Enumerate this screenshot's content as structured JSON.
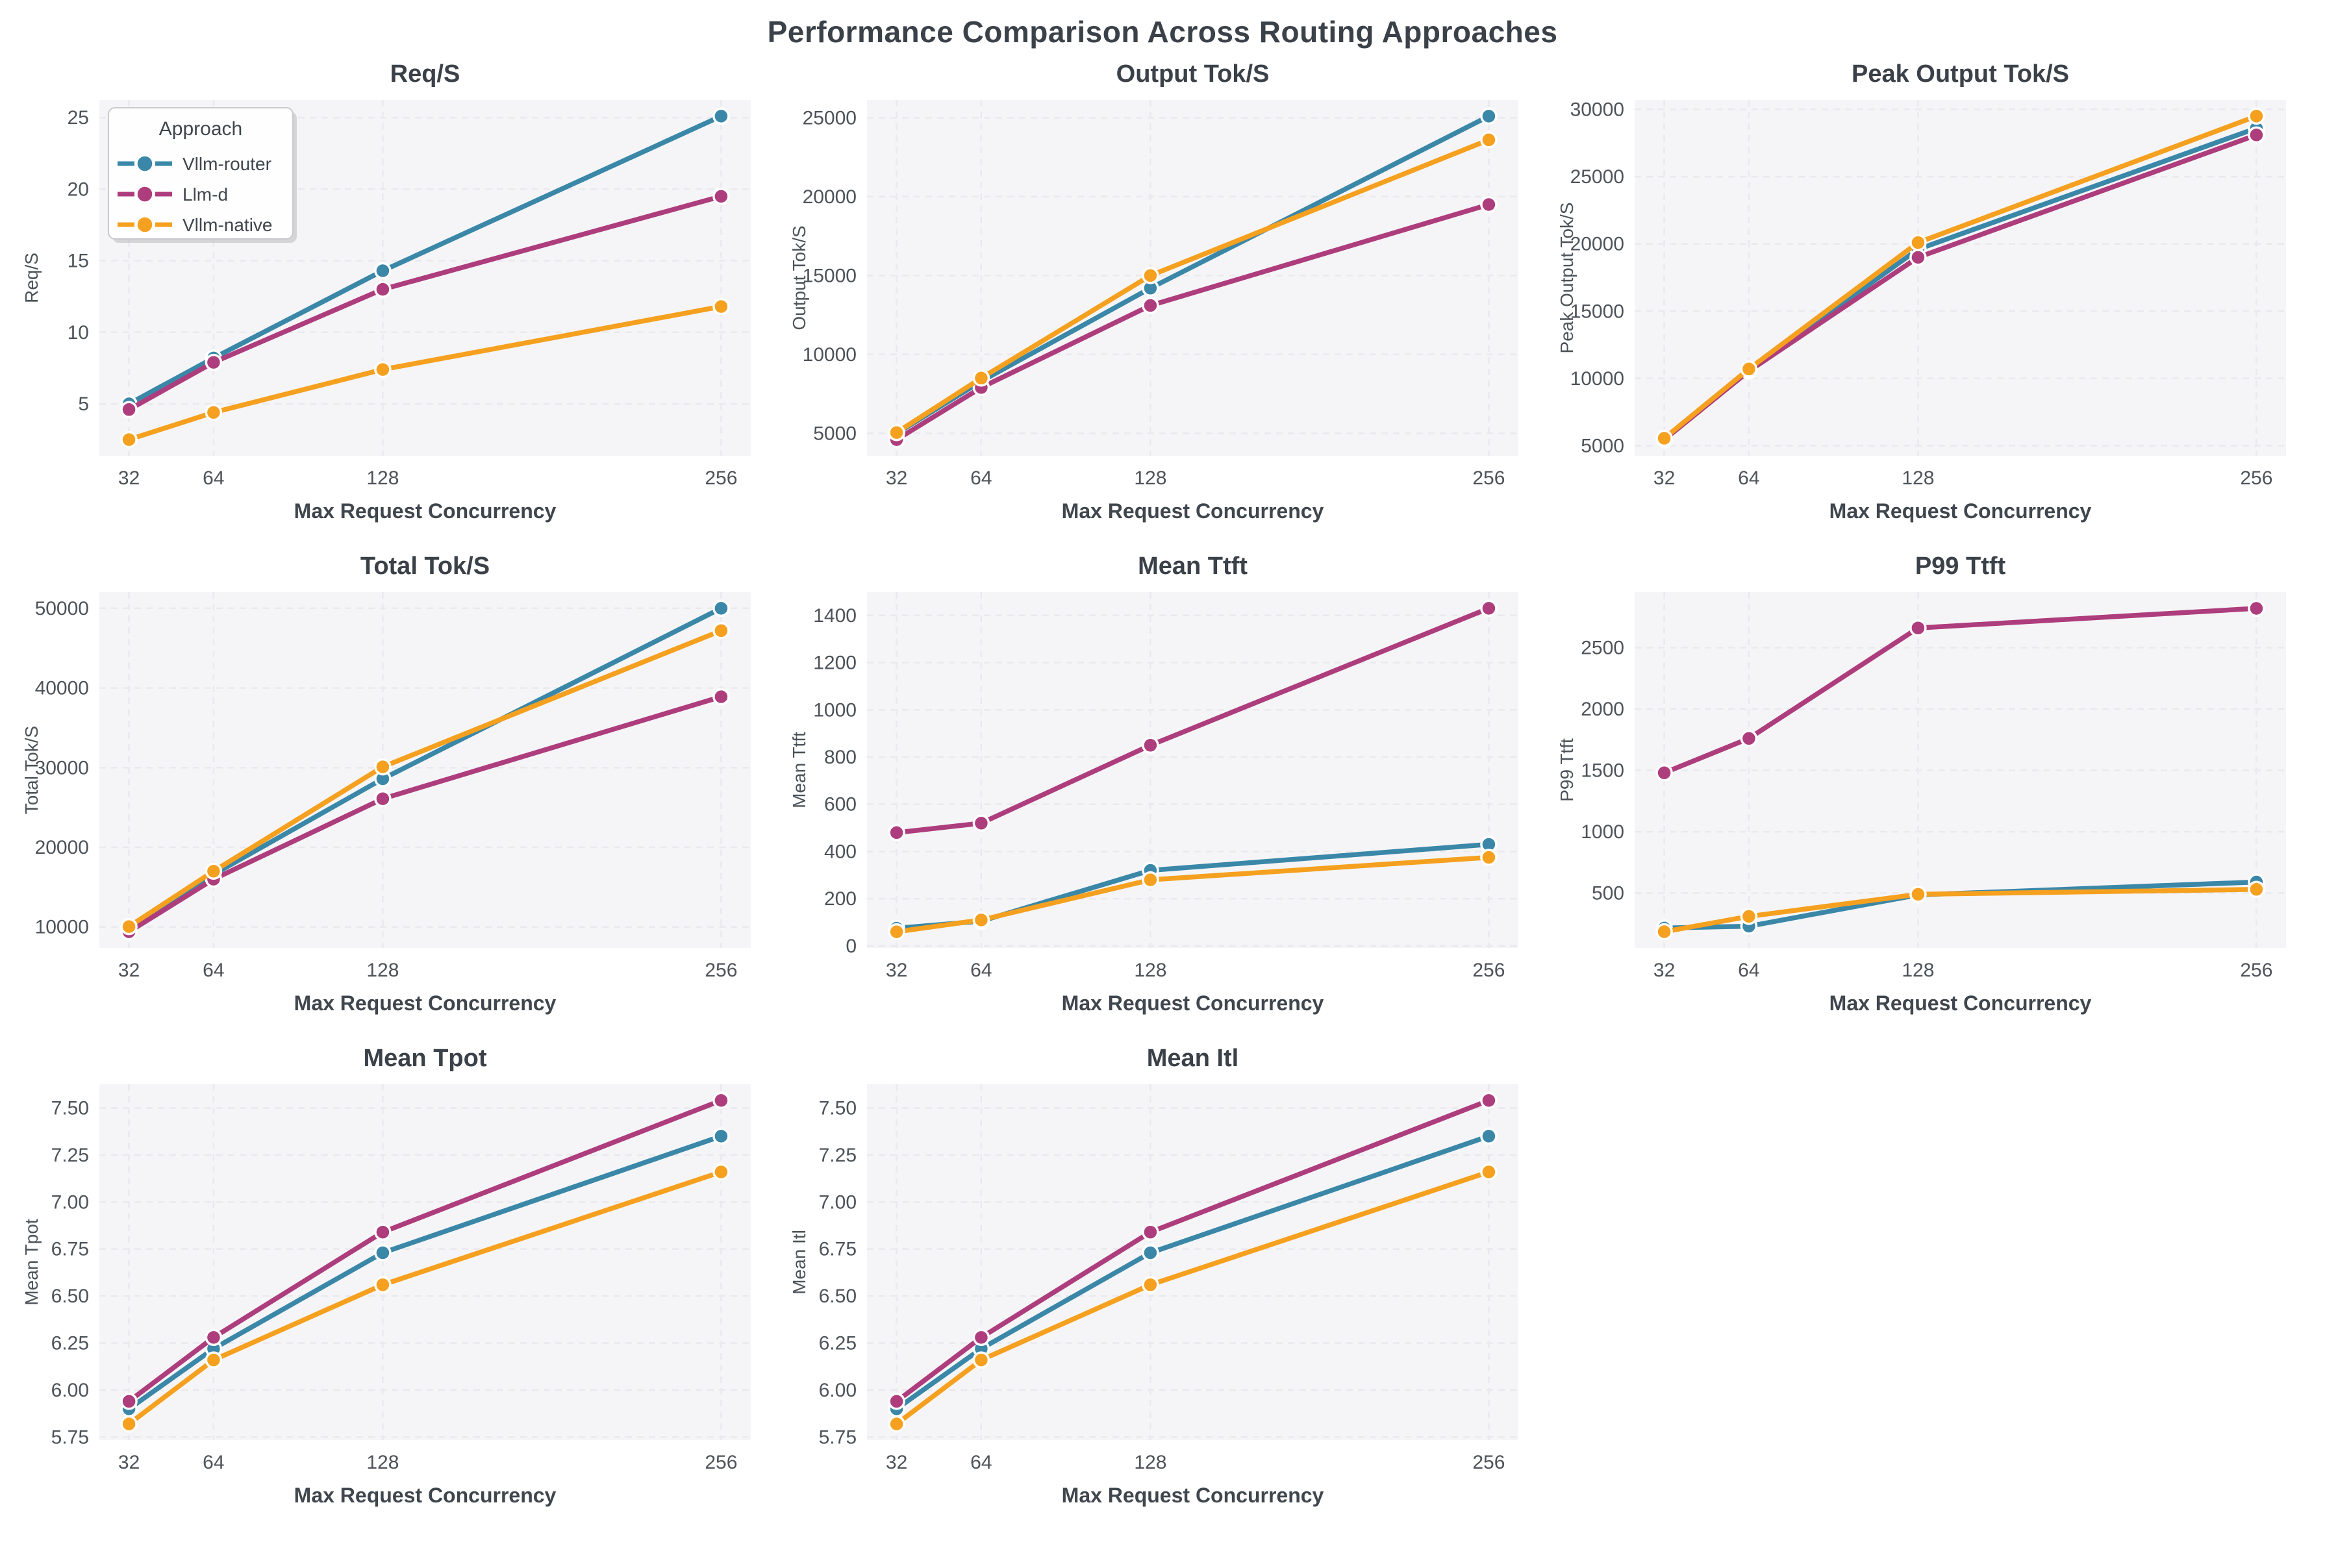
{
  "page_title": "Performance Comparison Across Routing Approaches",
  "colors": {
    "figure_bg": "#ffffff",
    "plot_bg": "#f5f5f7",
    "grid_line": "#e9e9ee",
    "title_text": "#3b4148",
    "label_text": "#3f464d",
    "tick_text": "#4d5359",
    "legend_border": "#c9c9cf",
    "legend_bg": "#fefeff",
    "legend_shadow": "#b9b9bd"
  },
  "legend": {
    "title": "Approach",
    "entries": [
      {
        "label": "Vllm-router",
        "color": "#3a87a8"
      },
      {
        "label": "Llm-d",
        "color": "#ad3d7c"
      },
      {
        "label": "Vllm-native",
        "color": "#f5a01f"
      }
    ]
  },
  "x_axis": {
    "label": "Max Request Concurrency",
    "ticks": [
      32,
      64,
      128,
      256
    ],
    "xlim": [
      20.8,
      267.2
    ]
  },
  "chart_data": [
    {
      "type": "line",
      "title": "Req/S",
      "ylabel": "Req/S",
      "x": [
        32,
        64,
        128,
        256
      ],
      "ylim": [
        1.37,
        26.23
      ],
      "yticks": [
        {
          "v": 5,
          "label": "5"
        },
        {
          "v": 10,
          "label": "10"
        },
        {
          "v": 15,
          "label": "15"
        },
        {
          "v": 20,
          "label": "20"
        },
        {
          "v": 25,
          "label": "25"
        }
      ],
      "series": [
        {
          "name": "Vllm-router",
          "values": [
            5.0,
            8.2,
            14.3,
            25.1
          ]
        },
        {
          "name": "Llm-d",
          "values": [
            4.6,
            7.9,
            13.0,
            19.5
          ]
        },
        {
          "name": "Vllm-native",
          "values": [
            2.5,
            4.4,
            7.4,
            11.8
          ]
        }
      ],
      "show_legend": true
    },
    {
      "type": "line",
      "title": "Output Tok/S",
      "ylabel": "Output Tok/S",
      "x": [
        32,
        64,
        128,
        256
      ],
      "ylim": [
        3575,
        26125
      ],
      "yticks": [
        {
          "v": 5000,
          "label": "5000"
        },
        {
          "v": 10000,
          "label": "10000"
        },
        {
          "v": 15000,
          "label": "15000"
        },
        {
          "v": 20000,
          "label": "20000"
        },
        {
          "v": 25000,
          "label": "25000"
        }
      ],
      "series": [
        {
          "name": "Vllm-router",
          "values": [
            5000,
            8300,
            14200,
            25100
          ]
        },
        {
          "name": "Llm-d",
          "values": [
            4600,
            7900,
            13100,
            19500
          ]
        },
        {
          "name": "Vllm-native",
          "values": [
            5050,
            8500,
            15000,
            23600
          ]
        }
      ],
      "show_legend": false
    },
    {
      "type": "line",
      "title": "Peak Output Tok/S",
      "ylabel": "Peak Output Tok/S",
      "x": [
        32,
        64,
        128,
        256
      ],
      "ylim": [
        4248,
        30702
      ],
      "yticks": [
        {
          "v": 5000,
          "label": "5000"
        },
        {
          "v": 10000,
          "label": "10000"
        },
        {
          "v": 15000,
          "label": "15000"
        },
        {
          "v": 20000,
          "label": "20000"
        },
        {
          "v": 25000,
          "label": "25000"
        },
        {
          "v": 30000,
          "label": "30000"
        }
      ],
      "series": [
        {
          "name": "Vllm-router",
          "values": [
            5500,
            10600,
            19600,
            28600
          ]
        },
        {
          "name": "Llm-d",
          "values": [
            5450,
            10550,
            19000,
            28100
          ]
        },
        {
          "name": "Vllm-native",
          "values": [
            5550,
            10700,
            20100,
            29500
          ]
        }
      ],
      "show_legend": false
    },
    {
      "type": "line",
      "title": "Total Tok/S",
      "ylabel": "Total Tok/S",
      "x": [
        32,
        64,
        128,
        256
      ],
      "ylim": [
        7370,
        52030
      ],
      "yticks": [
        {
          "v": 10000,
          "label": "10000"
        },
        {
          "v": 20000,
          "label": "20000"
        },
        {
          "v": 30000,
          "label": "30000"
        },
        {
          "v": 40000,
          "label": "40000"
        },
        {
          "v": 50000,
          "label": "50000"
        }
      ],
      "series": [
        {
          "name": "Vllm-router",
          "values": [
            10000,
            16600,
            28600,
            50000
          ]
        },
        {
          "name": "Llm-d",
          "values": [
            9400,
            16000,
            26100,
            38900
          ]
        },
        {
          "name": "Vllm-native",
          "values": [
            10050,
            17000,
            30100,
            47200
          ]
        }
      ],
      "show_legend": false
    },
    {
      "type": "line",
      "title": "Mean Ttft",
      "ylabel": "Mean Ttft",
      "x": [
        32,
        64,
        128,
        256
      ],
      "ylim": [
        -8.5,
        1498.5
      ],
      "yticks": [
        {
          "v": 0,
          "label": "0"
        },
        {
          "v": 200,
          "label": "200"
        },
        {
          "v": 400,
          "label": "400"
        },
        {
          "v": 600,
          "label": "600"
        },
        {
          "v": 800,
          "label": "800"
        },
        {
          "v": 1000,
          "label": "1000"
        },
        {
          "v": 1200,
          "label": "1200"
        },
        {
          "v": 1400,
          "label": "1400"
        }
      ],
      "series": [
        {
          "name": "Vllm-router",
          "values": [
            75,
            105,
            320,
            430
          ]
        },
        {
          "name": "Llm-d",
          "values": [
            480,
            520,
            850,
            1430
          ]
        },
        {
          "name": "Vllm-native",
          "values": [
            60,
            110,
            280,
            375
          ]
        }
      ],
      "show_legend": false
    },
    {
      "type": "line",
      "title": "P99 Ttft",
      "ylabel": "P99 Ttft",
      "x": [
        32,
        64,
        128,
        256
      ],
      "ylim": [
        53,
        2952
      ],
      "yticks": [
        {
          "v": 500,
          "label": "500"
        },
        {
          "v": 1000,
          "label": "1000"
        },
        {
          "v": 1500,
          "label": "1500"
        },
        {
          "v": 2000,
          "label": "2000"
        },
        {
          "v": 2500,
          "label": "2500"
        }
      ],
      "series": [
        {
          "name": "Vllm-router",
          "values": [
            215,
            230,
            485,
            590
          ]
        },
        {
          "name": "Llm-d",
          "values": [
            1480,
            1760,
            2660,
            2820
          ]
        },
        {
          "name": "Vllm-native",
          "values": [
            185,
            310,
            490,
            530
          ]
        }
      ],
      "show_legend": false
    },
    {
      "type": "line",
      "title": "Mean Tpot",
      "ylabel": "Mean Tpot",
      "x": [
        32,
        64,
        128,
        256
      ],
      "ylim": [
        5.734,
        7.626
      ],
      "yticks": [
        {
          "v": 5.75,
          "label": "5.75"
        },
        {
          "v": 6.0,
          "label": "6.00"
        },
        {
          "v": 6.25,
          "label": "6.25"
        },
        {
          "v": 6.5,
          "label": "6.50"
        },
        {
          "v": 6.75,
          "label": "6.75"
        },
        {
          "v": 7.0,
          "label": "7.00"
        },
        {
          "v": 7.25,
          "label": "7.25"
        },
        {
          "v": 7.5,
          "label": "7.50"
        }
      ],
      "series": [
        {
          "name": "Vllm-router",
          "values": [
            5.9,
            6.22,
            6.73,
            7.35
          ]
        },
        {
          "name": "Llm-d",
          "values": [
            5.94,
            6.28,
            6.84,
            7.54
          ]
        },
        {
          "name": "Vllm-native",
          "values": [
            5.82,
            6.16,
            6.56,
            7.16
          ]
        }
      ],
      "show_legend": false
    },
    {
      "type": "line",
      "title": "Mean Itl",
      "ylabel": "Mean Itl",
      "x": [
        32,
        64,
        128,
        256
      ],
      "ylim": [
        5.734,
        7.626
      ],
      "yticks": [
        {
          "v": 5.75,
          "label": "5.75"
        },
        {
          "v": 6.0,
          "label": "6.00"
        },
        {
          "v": 6.25,
          "label": "6.25"
        },
        {
          "v": 6.5,
          "label": "6.50"
        },
        {
          "v": 6.75,
          "label": "6.75"
        },
        {
          "v": 7.0,
          "label": "7.00"
        },
        {
          "v": 7.25,
          "label": "7.25"
        },
        {
          "v": 7.5,
          "label": "7.50"
        }
      ],
      "series": [
        {
          "name": "Vllm-router",
          "values": [
            5.9,
            6.22,
            6.73,
            7.35
          ]
        },
        {
          "name": "Llm-d",
          "values": [
            5.94,
            6.28,
            6.84,
            7.54
          ]
        },
        {
          "name": "Vllm-native",
          "values": [
            5.82,
            6.16,
            6.56,
            7.16
          ]
        }
      ],
      "show_legend": false
    }
  ]
}
